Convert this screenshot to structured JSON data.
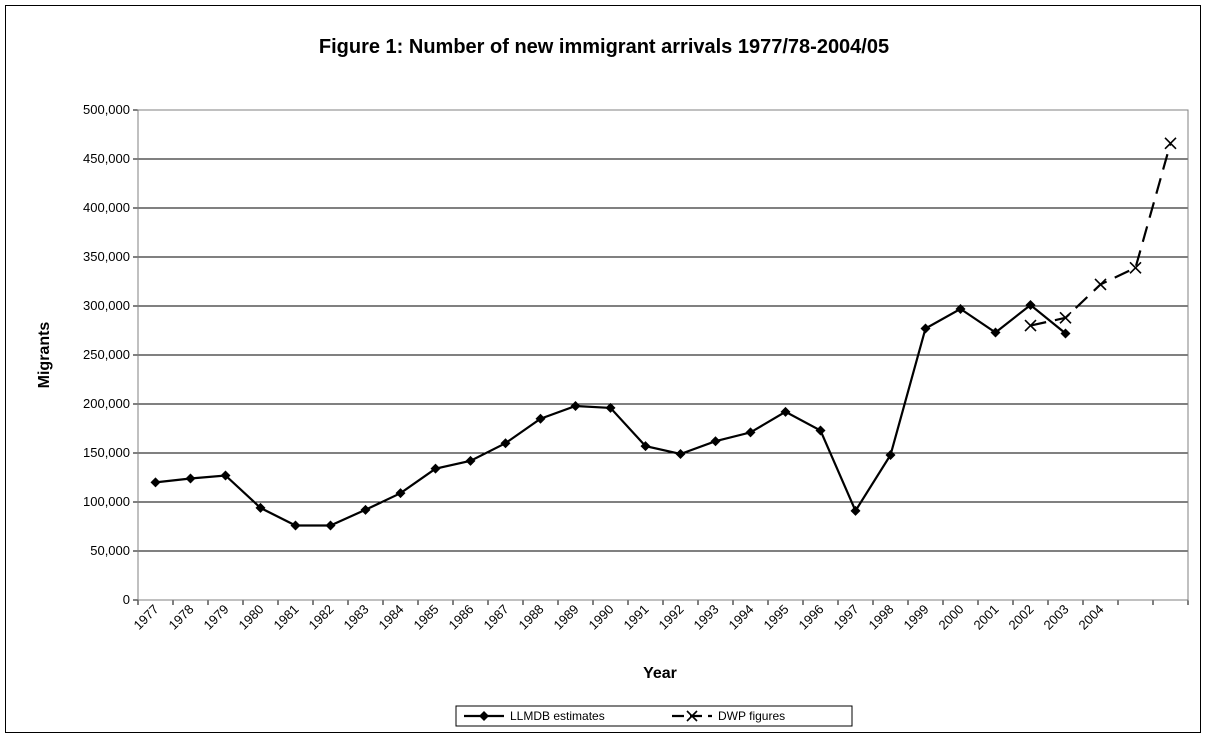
{
  "chart_data": {
    "type": "line",
    "title": "Figure 1: Number of new immigrant arrivals 1977/78-2004/05",
    "xlabel": "Year",
    "ylabel": "Migrants",
    "ylim": [
      0,
      500000
    ],
    "y_tick_step": 50000,
    "y_tick_labels": [
      "0",
      "50,000",
      "100,000",
      "150,000",
      "200,000",
      "250,000",
      "300,000",
      "350,000",
      "400,000",
      "450,000",
      "500,000"
    ],
    "x_tick_labels": [
      "1977",
      "1978",
      "1979",
      "1980",
      "1981",
      "1982",
      "1983",
      "1984",
      "1985",
      "1986",
      "1987",
      "1988",
      "1989",
      "1990",
      "1991",
      "1992",
      "1993",
      "1994",
      "1995",
      "1996",
      "1997",
      "1998",
      "1999",
      "2000",
      "2001",
      "2002",
      "2003",
      "2004"
    ],
    "grid": true,
    "legend_position": "bottom-center",
    "series": [
      {
        "name": "LLMDB estimates",
        "style": "solid",
        "marker": "diamond",
        "color": "#000000",
        "points": [
          {
            "x": 0,
            "y": 120000
          },
          {
            "x": 1,
            "y": 124000
          },
          {
            "x": 2,
            "y": 127000
          },
          {
            "x": 3,
            "y": 94000
          },
          {
            "x": 4,
            "y": 76000
          },
          {
            "x": 5,
            "y": 76000
          },
          {
            "x": 6,
            "y": 92000
          },
          {
            "x": 7,
            "y": 109000
          },
          {
            "x": 8,
            "y": 134000
          },
          {
            "x": 9,
            "y": 142000
          },
          {
            "x": 10,
            "y": 160000
          },
          {
            "x": 11,
            "y": 185000
          },
          {
            "x": 12,
            "y": 198000
          },
          {
            "x": 13,
            "y": 196000
          },
          {
            "x": 14,
            "y": 157000
          },
          {
            "x": 15,
            "y": 149000
          },
          {
            "x": 16,
            "y": 162000
          },
          {
            "x": 17,
            "y": 171000
          },
          {
            "x": 18,
            "y": 192000
          },
          {
            "x": 19,
            "y": 173000
          },
          {
            "x": 20,
            "y": 91000
          },
          {
            "x": 21,
            "y": 148000
          },
          {
            "x": 22,
            "y": 277000
          },
          {
            "x": 23,
            "y": 297000
          },
          {
            "x": 24,
            "y": 273000
          },
          {
            "x": 25,
            "y": 301000
          },
          {
            "x": 26,
            "y": 272000
          }
        ]
      },
      {
        "name": "DWP figures",
        "style": "dashed",
        "marker": "x",
        "color": "#000000",
        "points": [
          {
            "x": 25,
            "y": 280000
          },
          {
            "x": 26,
            "y": 288000
          },
          {
            "x": 27,
            "y": 322000
          },
          {
            "x": 28,
            "y": 339000
          },
          {
            "x": 29,
            "y": 466000
          }
        ]
      }
    ]
  }
}
